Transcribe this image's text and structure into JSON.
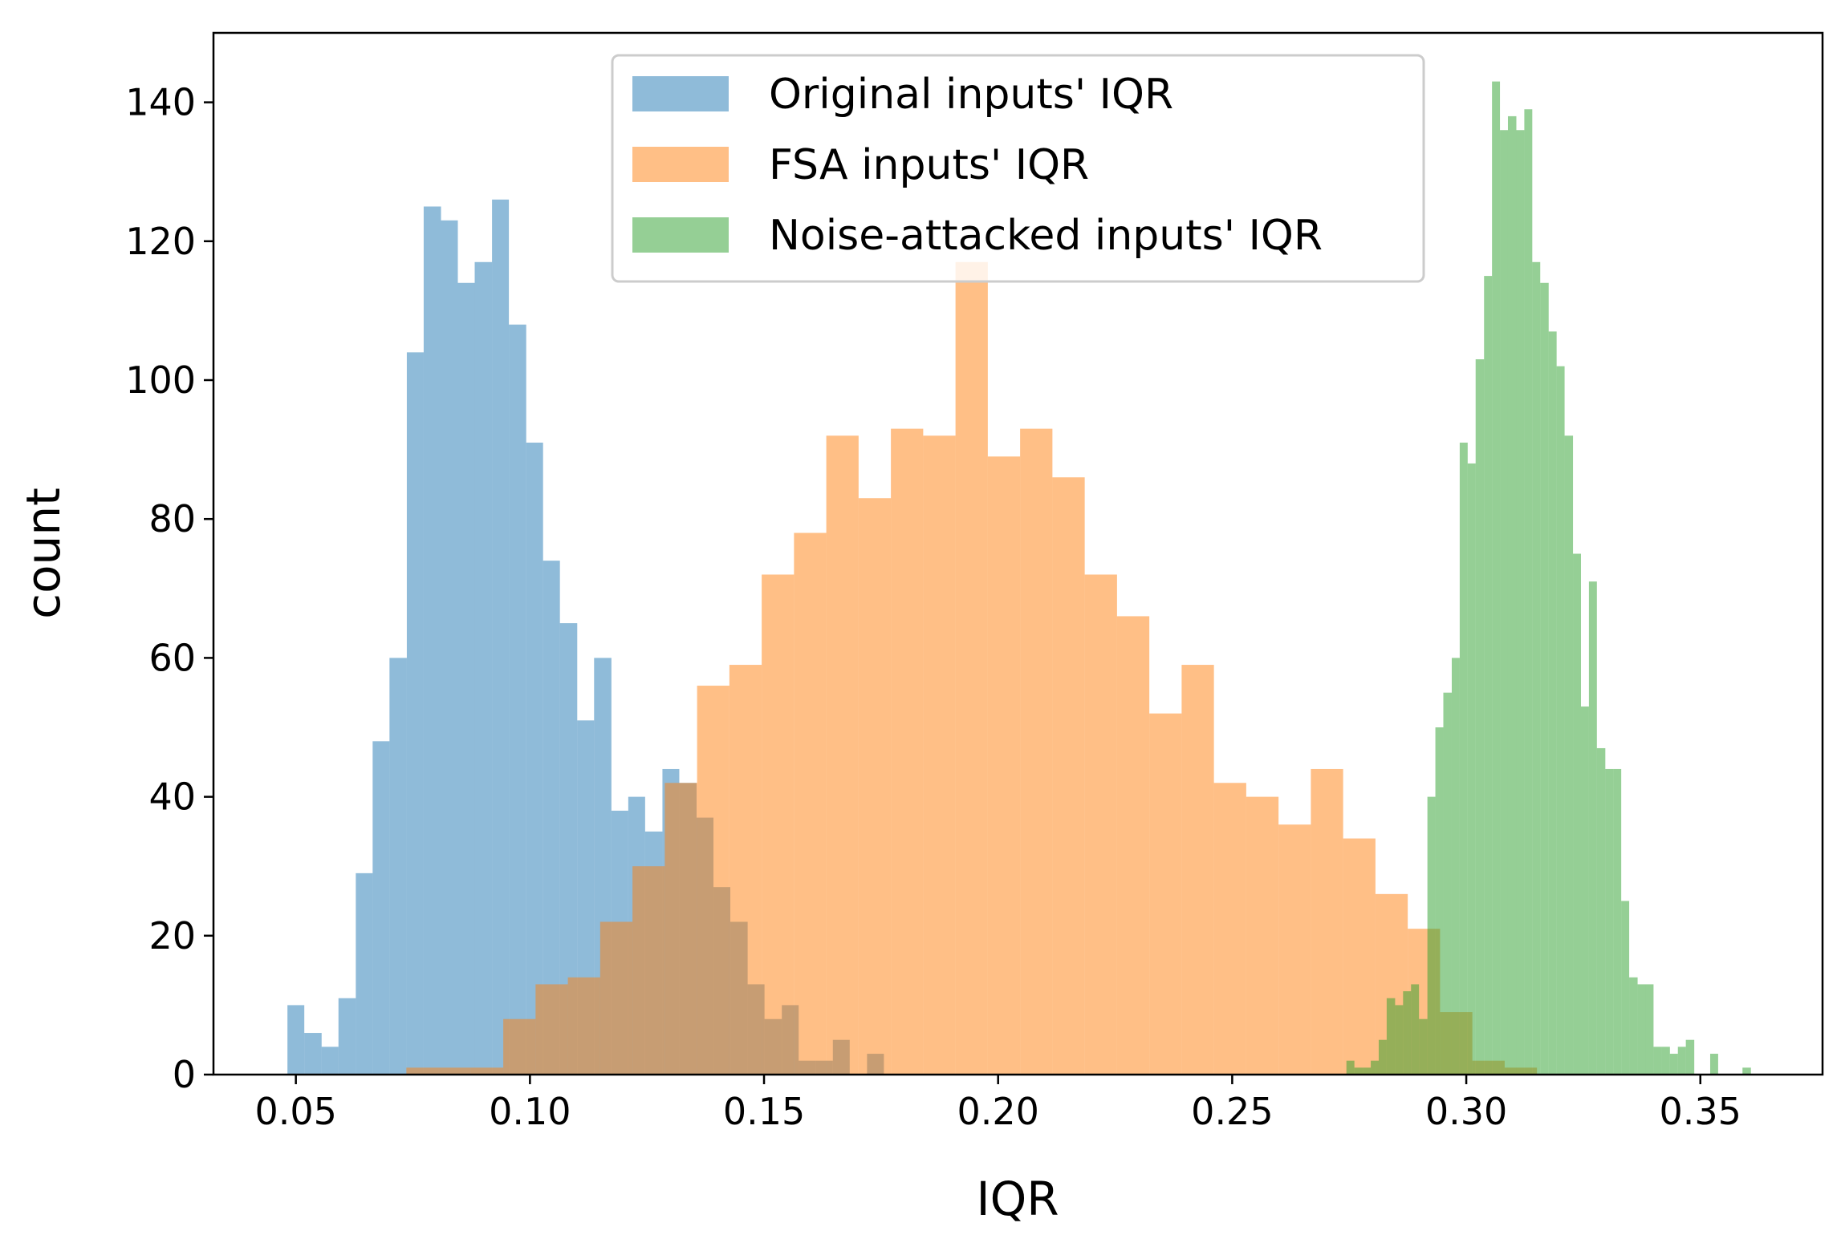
{
  "chart_data": {
    "type": "histogram",
    "xlabel": "IQR",
    "ylabel": "count",
    "xlim": [
      0.0324,
      0.3761
    ],
    "ylim": [
      0,
      150
    ],
    "xticks": [
      0.05,
      {
        "value": 0.1,
        "label": "0.10"
      },
      0.15,
      {
        "value": 0.2,
        "label": "0.20"
      },
      0.25,
      {
        "value": 0.3,
        "label": "0.30"
      },
      0.35
    ],
    "yticks": [
      0,
      20,
      40,
      60,
      80,
      100,
      120,
      140
    ],
    "legend": "upper center",
    "alpha": 0.5,
    "series": [
      {
        "name": "Original inputs' IQR",
        "color": "#1f77b4",
        "bins": [
          0.0482,
          0.0518,
          0.0555,
          0.0591,
          0.0628,
          0.0664,
          0.07,
          0.0737,
          0.0773,
          0.081,
          0.0846,
          0.0882,
          0.0919,
          0.0955,
          0.0992,
          0.1028,
          0.1064,
          0.1101,
          0.1137,
          0.1174,
          0.121,
          0.1246,
          0.1283,
          0.1319,
          0.1356,
          0.1392,
          0.1428,
          0.1465,
          0.1501,
          0.1538,
          0.1574,
          0.161,
          0.1647,
          0.1683,
          0.172,
          0.1756
        ],
        "values": [
          10,
          6,
          4,
          11,
          29,
          48,
          60,
          104,
          125,
          123,
          114,
          117,
          126,
          108,
          91,
          74,
          65,
          51,
          60,
          38,
          40,
          35,
          44,
          42,
          37,
          27,
          22,
          13,
          8,
          10,
          2,
          2,
          5,
          0,
          3
        ]
      },
      {
        "name": "FSA inputs' IQR",
        "color": "#ff7f0e",
        "bins": [
          0.0736,
          0.0805,
          0.0874,
          0.0943,
          0.1012,
          0.1081,
          0.115,
          0.1219,
          0.1288,
          0.1357,
          0.1426,
          0.1495,
          0.1564,
          0.1633,
          0.1702,
          0.1771,
          0.184,
          0.1909,
          0.1978,
          0.2047,
          0.2116,
          0.2185,
          0.2254,
          0.2323,
          0.2392,
          0.2461,
          0.253,
          0.2599,
          0.2668,
          0.2737,
          0.2806,
          0.2875,
          0.2944,
          0.3013,
          0.3082,
          0.3151
        ],
        "values": [
          1,
          1,
          1,
          8,
          13,
          14,
          22,
          30,
          42,
          56,
          59,
          72,
          78,
          92,
          83,
          93,
          92,
          117,
          89,
          93,
          86,
          72,
          66,
          52,
          59,
          42,
          40,
          36,
          44,
          34,
          26,
          21,
          9,
          2,
          1
        ]
      },
      {
        "name": "Noise-attacked inputs' IQR",
        "color": "#2ca02c",
        "bins": [
          0.2744,
          0.2761,
          0.2779,
          0.2796,
          0.2813,
          0.283,
          0.2848,
          0.2865,
          0.2882,
          0.2899,
          0.2917,
          0.2934,
          0.2951,
          0.2969,
          0.2986,
          0.3003,
          0.302,
          0.3038,
          0.3055,
          0.3072,
          0.3089,
          0.3107,
          0.3124,
          0.3141,
          0.3158,
          0.3176,
          0.3193,
          0.321,
          0.3228,
          0.3245,
          0.3262,
          0.3279,
          0.3297,
          0.3314,
          0.3331,
          0.3348,
          0.3366,
          0.3383,
          0.34,
          0.3418,
          0.3435,
          0.3452,
          0.3469,
          0.3487,
          0.3504,
          0.3521,
          0.3538,
          0.3556,
          0.3573,
          0.359,
          0.3608
        ],
        "values": [
          2,
          1,
          1,
          2,
          5,
          11,
          10,
          12,
          13,
          8,
          40,
          50,
          55,
          60,
          91,
          88,
          103,
          115,
          143,
          136,
          138,
          136,
          139,
          117,
          114,
          107,
          102,
          92,
          75,
          53,
          71,
          47,
          44,
          44,
          25,
          14,
          13,
          13,
          4,
          4,
          3,
          4,
          5,
          0,
          0,
          3,
          0,
          0,
          0,
          1
        ]
      }
    ]
  }
}
